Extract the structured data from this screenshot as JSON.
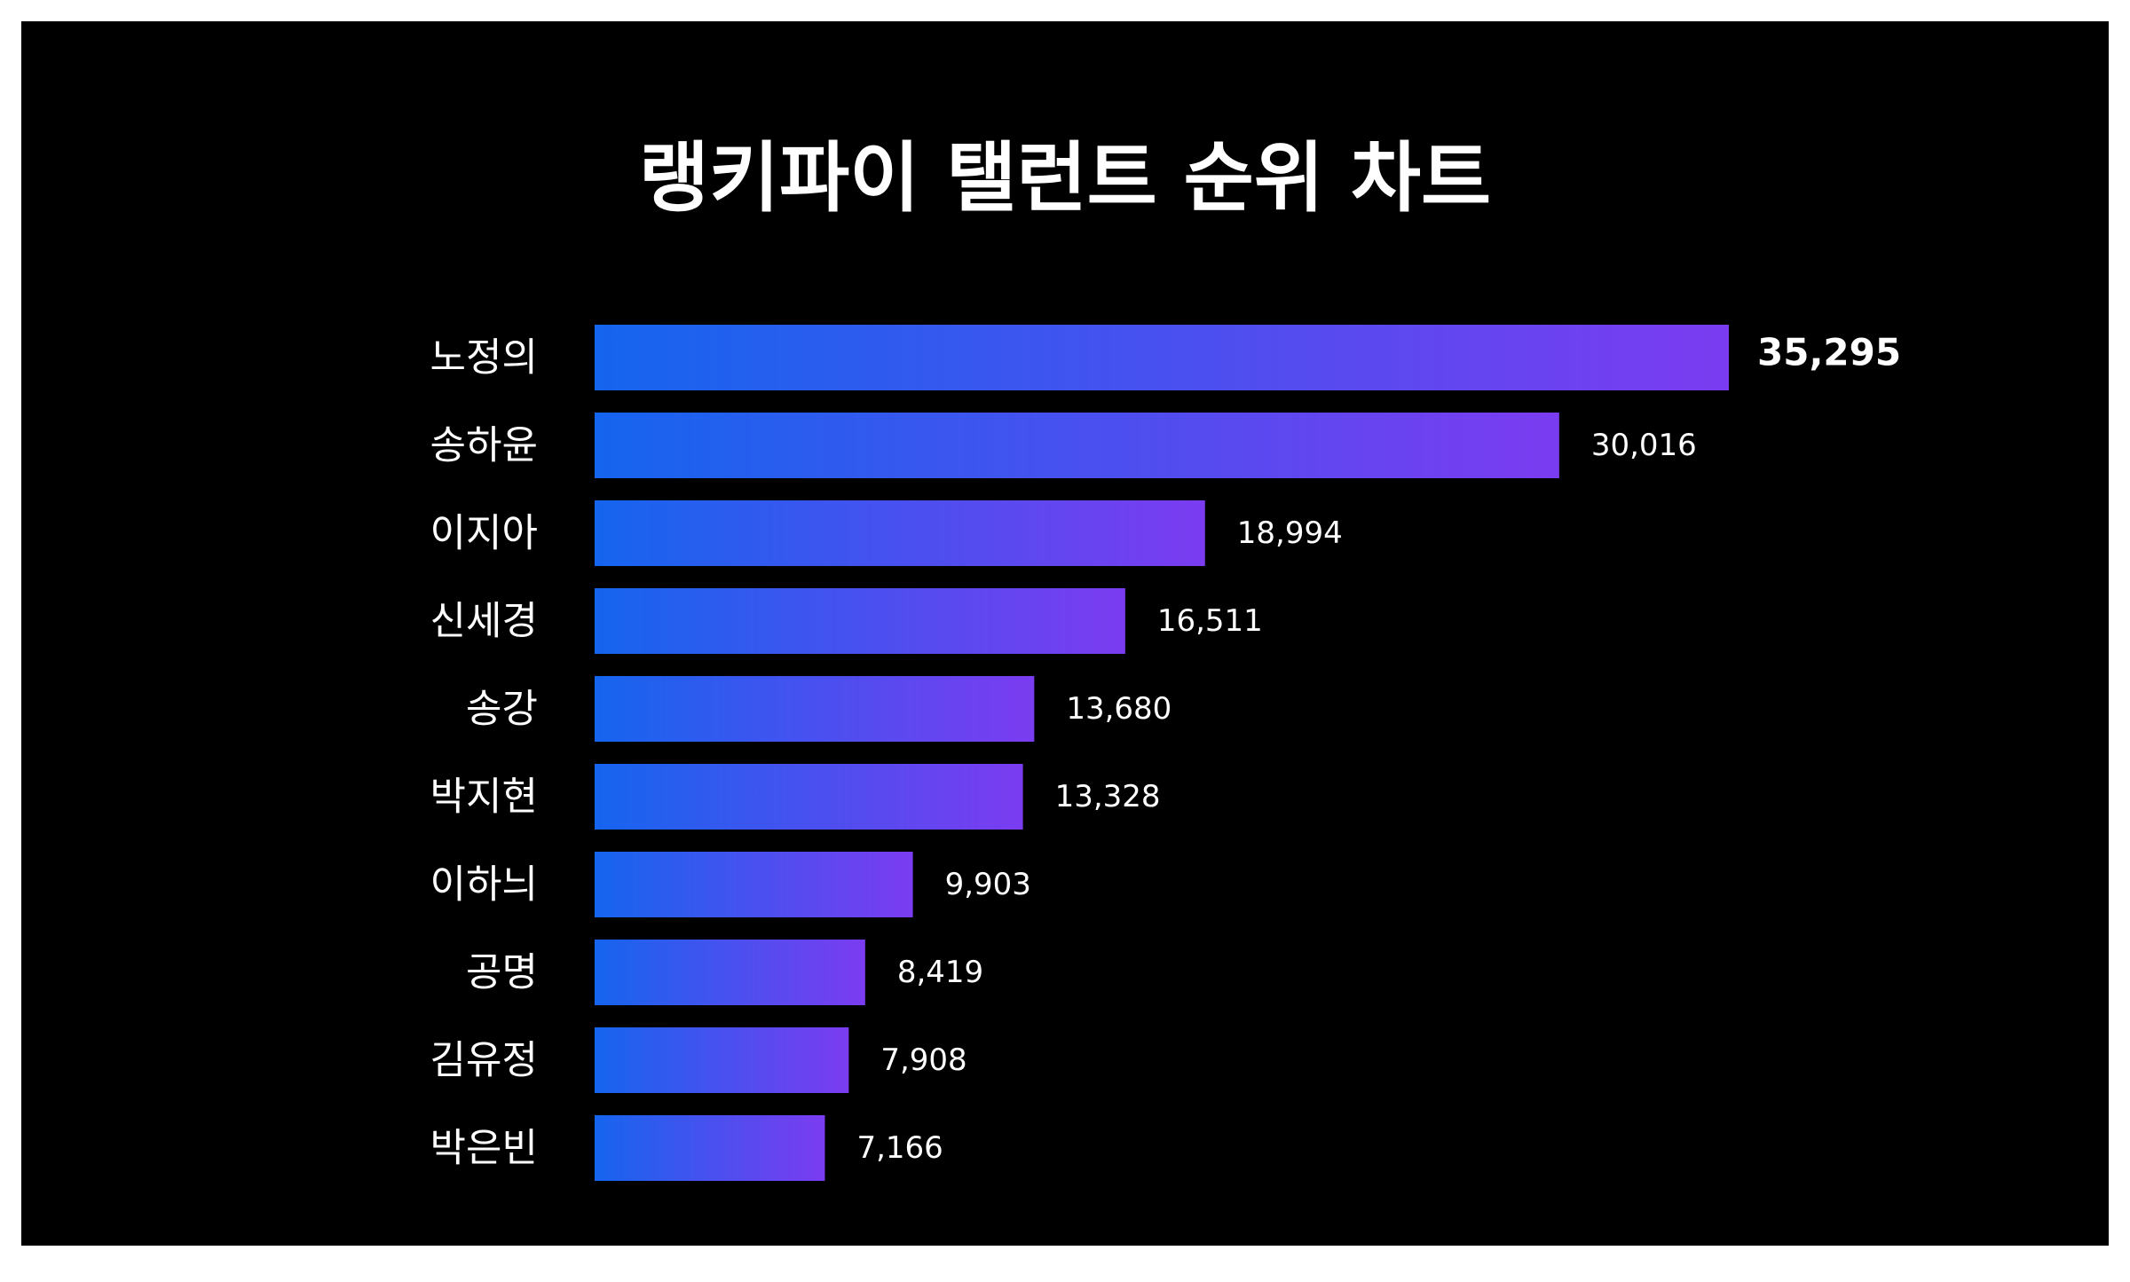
{
  "chart_data": {
    "type": "bar",
    "orientation": "horizontal",
    "title": "랭키파이 탤런트 순위 차트",
    "categories": [
      "노정의",
      "송하윤",
      "이지아",
      "신세경",
      "송강",
      "박지현",
      "이하늬",
      "공명",
      "김유정",
      "박은빈"
    ],
    "values": [
      35295,
      30016,
      18994,
      16511,
      13680,
      13328,
      9903,
      8419,
      7908,
      7166
    ],
    "value_labels": [
      "35,295",
      "30,016",
      "18,994",
      "16,511",
      "13,680",
      "13,328",
      "9,903",
      "8,419",
      "7,908",
      "7,166"
    ],
    "xlim": [
      0,
      35295
    ],
    "grid": false,
    "legend": "none"
  },
  "colors": {
    "frame_background": "#000000",
    "page_background": "#ffffff",
    "text": "#ffffff",
    "bar_gradient_start": "#1565ee",
    "bar_gradient_end": "#7b3cf0"
  }
}
